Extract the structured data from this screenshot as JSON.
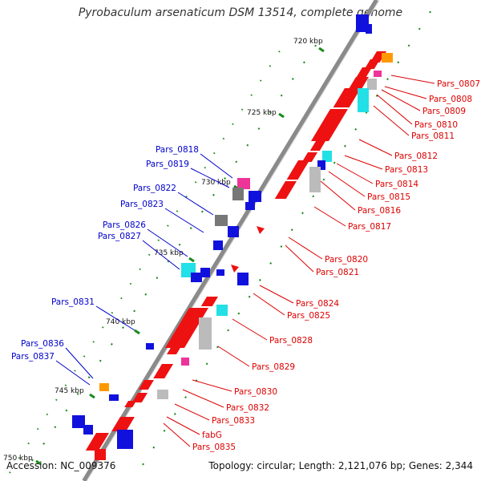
{
  "title": "Pyrobaculum arsenaticum DSM 13514, complete genome",
  "footer": {
    "accession": "Accession: NC_009376",
    "topology": "Topology: circular; Length: 2,121,076 bp; Genes: 2,344"
  },
  "colors": {
    "forward_gene": "#ee1111",
    "reverse_gene": "#1111dd",
    "rna_cyan": "#22e0e6",
    "pink": "#ee3399",
    "orange": "#ff9900",
    "gray": "#bbbbbb",
    "dark_gray": "#777777",
    "right_label": "#dd0000",
    "left_label": "#0000cc",
    "tick_green": "#1a8a1a"
  },
  "scale_labels": [
    "720 kbp",
    "725 kbp",
    "730 kbp",
    "735 kbp",
    "740 kbp",
    "745 kbp",
    "750 kbp"
  ],
  "right_labels": [
    "Pars_0807",
    "Pars_0808",
    "Pars_0809",
    "Pars_0810",
    "Pars_0811",
    "Pars_0812",
    "Pars_0813",
    "Pars_0814",
    "Pars_0815",
    "Pars_0816",
    "Pars_0817",
    "Pars_0820",
    "Pars_0821",
    "Pars_0824",
    "Pars_0825",
    "Pars_0828",
    "Pars_0829",
    "Pars_0830",
    "Pars_0832",
    "Pars_0833",
    "fabG",
    "Pars_0835"
  ],
  "left_labels": [
    "Pars_0818",
    "Pars_0819",
    "Pars_0822",
    "Pars_0823",
    "Pars_0826",
    "Pars_0827",
    "Pars_0831",
    "Pars_0836",
    "Pars_0837"
  ]
}
